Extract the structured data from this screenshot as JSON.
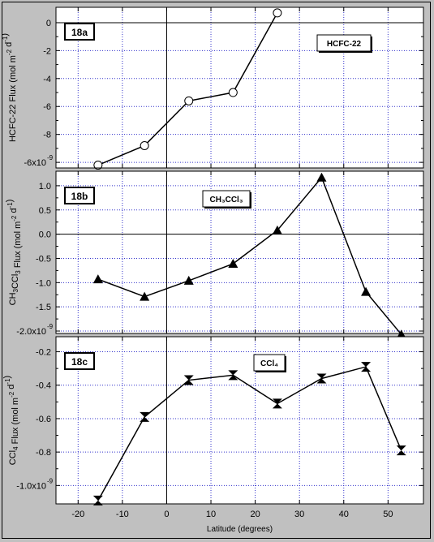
{
  "chart_data": [
    {
      "type": "line",
      "panel_label": "18a",
      "legend_label": "HCFC-22",
      "ylabel_parts": [
        "HCFC-22 Flux  (mol m",
        "-2",
        " d",
        "-1",
        ")"
      ],
      "y_exponent_label": "-6x10",
      "ylim": [
        -10.4,
        1.1
      ],
      "yticks": [
        0,
        -2,
        -4,
        -6,
        -8,
        -10
      ],
      "ytick_labels": [
        "0",
        "-2",
        "-4",
        "-6",
        "-8",
        ""
      ],
      "marker": "circle",
      "series": [
        {
          "x": [
            -15.5,
            -5,
            5,
            15,
            25
          ],
          "y": [
            -10.2,
            -8.8,
            -5.6,
            -5.0,
            0.7
          ]
        }
      ]
    },
    {
      "type": "line",
      "panel_label": "18b",
      "legend_label": "CH₃CCl₃",
      "ylabel_parts": [
        "CH",
        "3",
        "CCl",
        "3",
        " Flux  (mol m",
        "-2",
        " d",
        "-1",
        ")"
      ],
      "y_exponent_label": "-2.0x10",
      "ylim": [
        -2.05,
        1.3
      ],
      "yticks": [
        1.0,
        0.5,
        0.0,
        -0.5,
        -1.0,
        -1.5,
        -2.0
      ],
      "ytick_labels": [
        "1.0",
        "0.5",
        "0.0",
        "-0.5",
        "-1.0",
        "-1.5",
        ""
      ],
      "marker": "triangle",
      "series": [
        {
          "x": [
            -15.5,
            -5,
            5,
            15,
            25,
            35,
            45,
            53
          ],
          "y": [
            -0.93,
            -1.29,
            -0.96,
            -0.61,
            0.08,
            1.17,
            -1.19,
            -2.07
          ]
        }
      ]
    },
    {
      "type": "line",
      "panel_label": "18c",
      "legend_label": "CCl₄",
      "ylabel_parts": [
        "CCl",
        "4",
        " Flux  (mol m",
        "-2",
        " d",
        "-1",
        ")"
      ],
      "y_exponent_label": "-1.0x10",
      "ylim": [
        -1.11,
        -0.11
      ],
      "yticks": [
        -0.2,
        -0.4,
        -0.6,
        -0.8,
        -1.0
      ],
      "ytick_labels": [
        "-0.2",
        "-0.4",
        "-0.6",
        "-0.8",
        ""
      ],
      "marker": "hourglass",
      "series": [
        {
          "x": [
            -15.5,
            -5,
            5,
            15,
            25,
            35,
            45,
            53
          ],
          "y": [
            -1.09,
            -0.59,
            -0.37,
            -0.34,
            -0.51,
            -0.36,
            -0.29,
            -0.79
          ]
        }
      ]
    }
  ],
  "exponents": [
    "-9",
    "-9",
    "-9"
  ],
  "xaxis": {
    "label": "Latitude   (degrees)",
    "xlim": [
      -25,
      58
    ],
    "ticks": [
      -20,
      -10,
      0,
      10,
      20,
      30,
      40,
      50
    ],
    "tick_labels": [
      "-20",
      "-10",
      "0",
      "10",
      "20",
      "30",
      "40",
      "50"
    ]
  },
  "colors": {
    "background": "#c0c0c0",
    "plot_bg": "#ffffff",
    "grid": "#3333cc",
    "line": "#000000"
  }
}
